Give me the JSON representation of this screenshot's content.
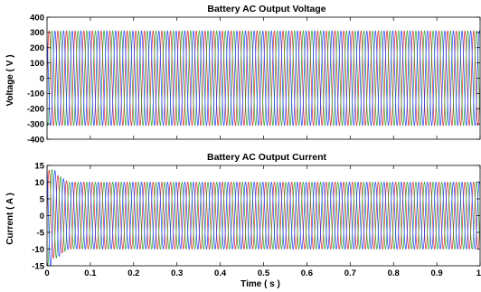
{
  "chart_data": [
    {
      "type": "line",
      "title": "Battery AC Output Voltage",
      "xlabel": "",
      "ylabel": "Voltage ( V )",
      "xlim": [
        0,
        1
      ],
      "ylim": [
        -400,
        400
      ],
      "yticks": [
        -400,
        -300,
        -200,
        -100,
        0,
        100,
        200,
        300,
        400
      ],
      "xticks": [],
      "grid": false,
      "signal": {
        "form": "three-phase sine",
        "frequency_hz": 50,
        "amplitude": 310,
        "phase_shift_deg": [
          0,
          -120,
          120
        ]
      },
      "series": [
        {
          "color": "#d62728"
        },
        {
          "color": "#2ca02c"
        },
        {
          "color": "#1f3fff"
        }
      ]
    },
    {
      "type": "line",
      "title": "Battery AC Output Current",
      "xlabel": "Time ( s )",
      "ylabel": "Current ( A )",
      "xlim": [
        0,
        1
      ],
      "ylim": [
        -15,
        15
      ],
      "yticks": [
        -15,
        -10,
        -5,
        0,
        5,
        10,
        15
      ],
      "xticks": [
        0,
        0.1,
        0.2,
        0.3,
        0.4,
        0.5,
        0.6,
        0.7,
        0.8,
        0.9,
        1
      ],
      "grid": false,
      "signal": {
        "form": "three-phase sine with start-up transient",
        "frequency_hz": 50,
        "amplitude": 10,
        "peak_transient": 14,
        "transient_end_s": 0.05,
        "phase_shift_deg": [
          0,
          -120,
          120
        ]
      },
      "series": [
        {
          "color": "#d62728"
        },
        {
          "color": "#2ca02c"
        },
        {
          "color": "#1f3fff"
        }
      ]
    }
  ]
}
